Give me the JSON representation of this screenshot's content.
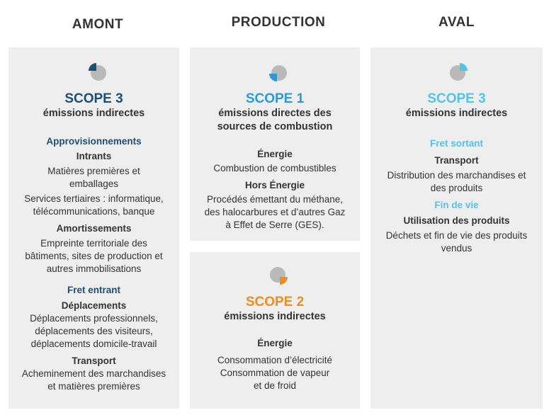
{
  "colors": {
    "panel_bg": "#eeeeee",
    "dark_blue": "#1d4e73",
    "mid_blue": "#2a9ad6",
    "light_blue": "#52c3ea",
    "orange": "#ef8d22",
    "icon_grey": "#b9b9b9"
  },
  "columns": {
    "amont": "AMONT",
    "production": "PRODUCTION",
    "aval": "AVAL"
  },
  "amont_panel": {
    "icon": "pie-chart-icon",
    "scope": "SCOPE 3",
    "subtitle": "émissions indirectes",
    "sections": [
      {
        "title": "Approvisionnements",
        "groups": [
          {
            "heading": "Intrants",
            "lines": [
              "Matières premières et",
              "emballages",
              "Services tertiaires : informatique,",
              "télécommunications, banque"
            ]
          },
          {
            "heading": "Amortissements",
            "lines": [
              "Empreinte territoriale des",
              "bâtiments, sites de production et",
              "autres immobilisations"
            ]
          }
        ]
      },
      {
        "title": "Fret entrant",
        "groups": [
          {
            "heading": "Déplacements",
            "lines": [
              "Déplacements professionnels,",
              "déplacements des visiteurs,",
              "déplacements domicile-travail"
            ]
          },
          {
            "heading": "Transport",
            "lines": [
              "Acheminement des marchandises",
              "et matières premières"
            ]
          }
        ]
      }
    ]
  },
  "scope1_panel": {
    "icon": "pie-chart-icon",
    "scope": "SCOPE 1",
    "subtitle_lines": [
      "émissions directes des",
      "sources de combustion"
    ],
    "groups": [
      {
        "heading": "Énergie",
        "lines": [
          "Combustion de combustibles"
        ]
      },
      {
        "heading": "Hors Énergie",
        "lines": [
          "Procédés émettant du méthane,",
          "des halocarbures et d’autres Gaz",
          "à Effet de Serre (GES)."
        ]
      }
    ]
  },
  "scope2_panel": {
    "icon": "pie-chart-icon",
    "scope": "SCOPE 2",
    "subtitle": "émissions indirectes",
    "groups": [
      {
        "heading": "Énergie",
        "lines": [
          "Consommation d’électricité",
          "Consommation de vapeur",
          "et de froid"
        ]
      }
    ]
  },
  "aval_panel": {
    "icon": "pie-chart-icon",
    "scope": "SCOPE 3",
    "subtitle": "émissions indirectes",
    "sections": [
      {
        "title": "Fret sortant",
        "groups": [
          {
            "heading": "Transport",
            "lines": [
              "Distribution des marchandises et",
              "des produits"
            ]
          }
        ]
      },
      {
        "title": "Fin de vie",
        "groups": [
          {
            "heading": "Utilisation des produits",
            "lines": [
              "Déchets et fin de vie des produits",
              "vendus"
            ]
          }
        ]
      }
    ]
  }
}
